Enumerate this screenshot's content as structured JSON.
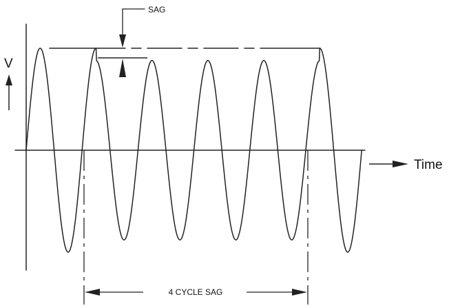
{
  "labels": {
    "y_axis": "V",
    "x_axis": "Time",
    "sag_callout": "SAG",
    "duration": "4 CYCLE SAG"
  },
  "waveform": {
    "cycles_total": 6,
    "sag_cycles": 4,
    "normal_amplitude": 1.0,
    "sag_amplitude": 0.88,
    "sag_start_cycle": 1,
    "sag_end_cycle": 5
  },
  "colors": {
    "line": "#222222",
    "background": "#ffffff"
  }
}
